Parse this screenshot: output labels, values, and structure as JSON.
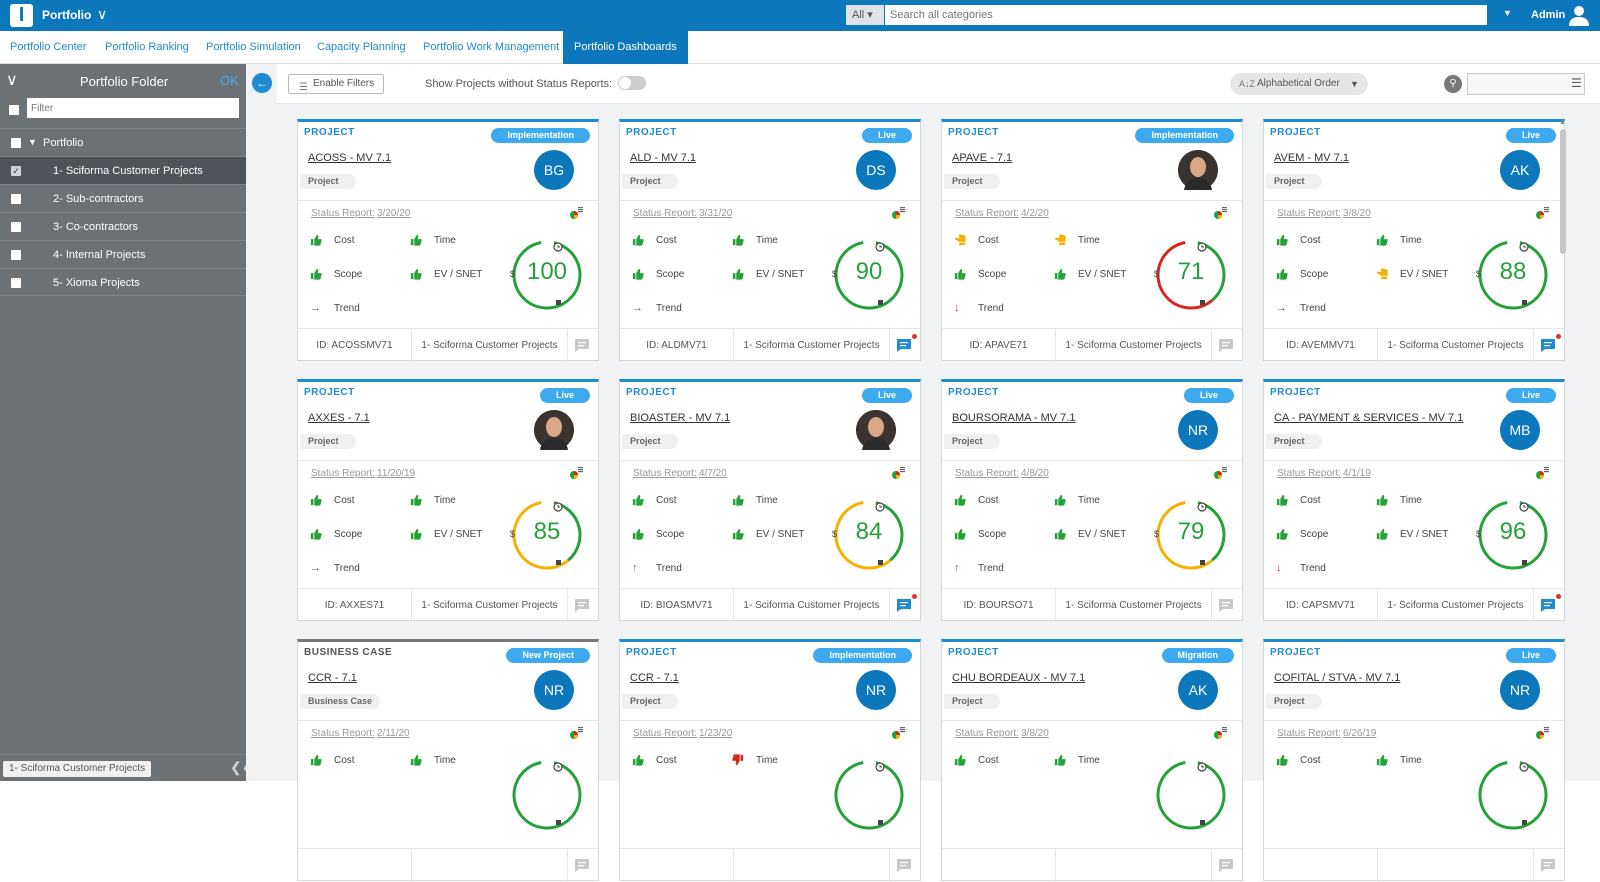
{
  "topbar": {
    "logo": "I",
    "title": "Portfolio",
    "search_category": "All",
    "search_placeholder": "Search all categories",
    "user": "Admin"
  },
  "nav": {
    "tabs": [
      "Portfolio Center",
      "Portfolio Ranking",
      "Portfolio Simulation",
      "Capacity Planning",
      "Portfolio Work Management",
      "Portfolio Dashboards"
    ],
    "active": "Portfolio Dashboards"
  },
  "sidebar": {
    "title": "Portfolio Folder",
    "ok": "OK",
    "filter_placeholder": "Filter",
    "root": "Portfolio",
    "items": [
      "1- Sciforma Customer Projects",
      "2- Sub-contractors",
      "3- Co-contractors",
      "4- Internal Projects",
      "5- Xioma Projects"
    ],
    "selected": "1- Sciforma Customer Projects",
    "footer_label": "1- Sciforma Customer Projects"
  },
  "toolbar": {
    "enable_filters": "Enable Filters",
    "show_without_status": "Show Projects without Status Reports:",
    "sort": "Alphabetical Order"
  },
  "labels": {
    "status_report": "Status Report:",
    "cost": "Cost",
    "time": "Time",
    "scope": "Scope",
    "ev": "EV / SNET",
    "trend": "Trend",
    "dollar": "$"
  },
  "colors": {
    "good": "#25a139",
    "warn": "#f5b000",
    "bad": "#d9261c",
    "accent": "#1f8bd0"
  },
  "cards": [
    {
      "kind": "PROJECT",
      "status": "Implementation",
      "name": "ACOSS - MV 7.1",
      "type": "Project",
      "avatar": "BG",
      "date": "3/20/20",
      "cost": "good",
      "time": "good",
      "scope": "good",
      "ev": "good",
      "trend": "flat",
      "score": "100",
      "ring": [
        "good",
        "good",
        "good"
      ],
      "id": "ID: ACOSSMV71",
      "folder": "1- Sciforma Customer Projects",
      "comment": false
    },
    {
      "kind": "PROJECT",
      "status": "Live",
      "name": "ALD - MV 7.1",
      "type": "Project",
      "avatar": "DS",
      "date": "3/31/20",
      "cost": "good",
      "time": "good",
      "scope": "good",
      "ev": "good",
      "trend": "flat",
      "score": "90",
      "ring": [
        "good",
        "good",
        "good"
      ],
      "id": "ID: ALDMV71",
      "folder": "1- Sciforma Customer Projects",
      "comment": true
    },
    {
      "kind": "PROJECT",
      "status": "Implementation",
      "name": "APAVE - 7.1",
      "type": "Project",
      "avatar": "",
      "date": "4/2/20",
      "cost": "warn",
      "time": "warn",
      "scope": "good",
      "ev": "good",
      "trend": "down",
      "score": "71",
      "ring": [
        "good",
        "bad",
        "bad"
      ],
      "id": "ID: APAVE71",
      "folder": "1- Sciforma Customer Projects",
      "comment": false
    },
    {
      "kind": "PROJECT",
      "status": "Live",
      "name": "AVEM - MV 7.1",
      "type": "Project",
      "avatar": "AK",
      "date": "3/8/20",
      "cost": "good",
      "time": "good",
      "scope": "good",
      "ev": "warn",
      "trend": "flat",
      "score": "88",
      "ring": [
        "good",
        "good",
        "good"
      ],
      "id": "ID: AVEMMV71",
      "folder": "1- Sciforma Customer Projects",
      "comment": true
    },
    {
      "kind": "PROJECT",
      "status": "Live",
      "name": "AXXES - 7.1",
      "type": "Project",
      "avatar": "",
      "date": "11/20/19",
      "cost": "good",
      "time": "good",
      "scope": "good",
      "ev": "good",
      "trend": "flat",
      "score": "85",
      "ring": [
        "good",
        "warn",
        "warn"
      ],
      "id": "ID: AXXES71",
      "folder": "1- Sciforma Customer Projects",
      "comment": false
    },
    {
      "kind": "PROJECT",
      "status": "Live",
      "name": "BIOASTER - MV 7.1",
      "type": "Project",
      "avatar": "",
      "date": "4/7/20",
      "cost": "good",
      "time": "good",
      "scope": "good",
      "ev": "good",
      "trend": "up",
      "score": "84",
      "ring": [
        "good",
        "warn",
        "warn"
      ],
      "id": "ID: BIOASMV71",
      "folder": "1- Sciforma Customer Projects",
      "comment": true
    },
    {
      "kind": "PROJECT",
      "status": "Live",
      "name": "BOURSORAMA - MV 7.1",
      "type": "Project",
      "avatar": "NR",
      "date": "4/8/20",
      "cost": "good",
      "time": "good",
      "scope": "good",
      "ev": "good",
      "trend": "up",
      "score": "79",
      "ring": [
        "good",
        "warn",
        "warn"
      ],
      "id": "ID: BOURSO71",
      "folder": "1- Sciforma Customer Projects",
      "comment": false
    },
    {
      "kind": "PROJECT",
      "status": "Live",
      "name": "CA - PAYMENT & SERVICES - MV 7.1",
      "type": "Project",
      "avatar": "MB",
      "date": "4/1/19",
      "cost": "good",
      "time": "good",
      "scope": "good",
      "ev": "good",
      "trend": "down",
      "score": "96",
      "ring": [
        "good",
        "good",
        "good"
      ],
      "id": "ID: CAPSMV71",
      "folder": "1- Sciforma Customer Projects",
      "comment": true
    },
    {
      "kind": "BUSINESS CASE",
      "status": "New Project",
      "name": "CCR - 7.1",
      "type": "Business Case",
      "avatar": "NR",
      "date": "2/11/20",
      "cost": "good",
      "time": "good",
      "scope": "",
      "ev": "",
      "trend": "",
      "score": "",
      "ring": [
        "good",
        "good",
        "good"
      ],
      "id": "",
      "folder": "",
      "comment": false
    },
    {
      "kind": "PROJECT",
      "status": "Implementation",
      "name": "CCR - 7.1",
      "type": "Project",
      "avatar": "NR",
      "date": "1/23/20",
      "cost": "good",
      "time": "bad",
      "scope": "",
      "ev": "",
      "trend": "",
      "score": "",
      "ring": [
        "good",
        "good",
        "good"
      ],
      "id": "",
      "folder": "",
      "comment": false
    },
    {
      "kind": "PROJECT",
      "status": "Migration",
      "name": "CHU BORDEAUX - MV 7.1",
      "type": "Project",
      "avatar": "AK",
      "date": "3/8/20",
      "cost": "good",
      "time": "good",
      "scope": "",
      "ev": "",
      "trend": "",
      "score": "",
      "ring": [
        "good",
        "good",
        "good"
      ],
      "id": "",
      "folder": "",
      "comment": false
    },
    {
      "kind": "PROJECT",
      "status": "Live",
      "name": "COFITAL / STVA - MV 7.1",
      "type": "Project",
      "avatar": "NR",
      "date": "6/26/19",
      "cost": "good",
      "time": "good",
      "scope": "",
      "ev": "",
      "trend": "",
      "score": "",
      "ring": [
        "good",
        "good",
        "good"
      ],
      "id": "",
      "folder": "",
      "comment": false
    }
  ]
}
